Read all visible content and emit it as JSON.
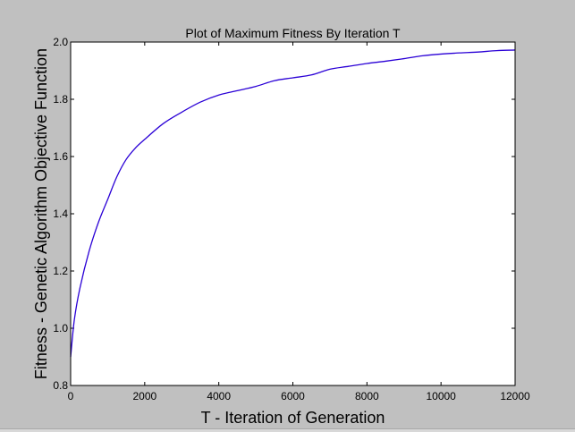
{
  "chart_data": {
    "type": "line",
    "title": "Plot of Maximum Fitness By Iteration T",
    "xlabel": "T - Iteration of Generation",
    "ylabel": "Fitness - Genetic Algorithm Objective Function",
    "xlim": [
      0,
      12000
    ],
    "ylim": [
      0.8,
      2.0
    ],
    "x_ticks": [
      0,
      2000,
      4000,
      6000,
      8000,
      10000,
      12000
    ],
    "y_ticks": [
      0.8,
      1.0,
      1.2,
      1.4,
      1.6,
      1.8,
      2.0
    ],
    "x_tick_labels": [
      "0",
      "2000",
      "4000",
      "6000",
      "8000",
      "10000",
      "12000"
    ],
    "y_tick_labels": [
      "0.8",
      "1.0",
      "1.2",
      "1.4",
      "1.6",
      "1.8",
      "2.0"
    ],
    "grid": false,
    "series": [
      {
        "color": "#2a00d6",
        "x": [
          0,
          100,
          250,
          500,
          750,
          1000,
          1250,
          1500,
          1750,
          2000,
          2500,
          3000,
          3500,
          4000,
          4500,
          5000,
          5500,
          6000,
          6500,
          7000,
          7500,
          8000,
          8500,
          9000,
          9500,
          10000,
          10500,
          11000,
          11500,
          12000
        ],
        "y": [
          0.9,
          1.03,
          1.14,
          1.27,
          1.37,
          1.45,
          1.53,
          1.59,
          1.63,
          1.66,
          1.715,
          1.755,
          1.79,
          1.815,
          1.83,
          1.845,
          1.865,
          1.875,
          1.885,
          1.905,
          1.915,
          1.925,
          1.933,
          1.942,
          1.952,
          1.958,
          1.962,
          1.965,
          1.97,
          1.972
        ]
      }
    ]
  }
}
